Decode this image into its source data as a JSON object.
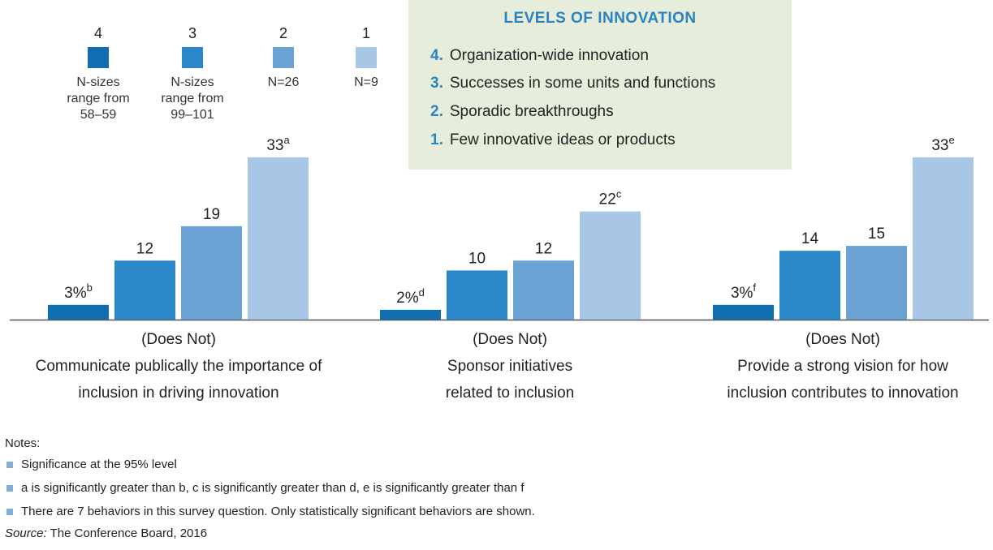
{
  "colors": {
    "level4": "#0f6fb0",
    "level3": "#2b88c8",
    "level2": "#6aa3d3",
    "level1": "#a8c6e6",
    "box_bg": "#e6eedb",
    "accent": "#2b83c3"
  },
  "legend": [
    {
      "level": "4",
      "n_text": "N-sizes\nrange from\n58–59"
    },
    {
      "level": "3",
      "n_text": "N-sizes\nrange from\n99–101"
    },
    {
      "level": "2",
      "n_text": "N=26"
    },
    {
      "level": "1",
      "n_text": "N=9"
    }
  ],
  "levels_box": {
    "title": "LEVELS OF INNOVATION",
    "items": [
      {
        "num": "4.",
        "text": "Organization-wide innovation"
      },
      {
        "num": "3.",
        "text": "Successes in some units and functions"
      },
      {
        "num": "2.",
        "text": "Sporadic breakthroughs"
      },
      {
        "num": "1.",
        "text": "Few innovative ideas or products"
      }
    ]
  },
  "chart_data": {
    "type": "bar",
    "ylim": [
      0,
      35
    ],
    "grid": false,
    "legend": "top-left",
    "series_levels": [
      "4",
      "3",
      "2",
      "1"
    ],
    "groups": [
      {
        "line1": "(Does Not)",
        "line2": "Communicate publically the importance of",
        "line3": "inclusion in driving innovation",
        "values": [
          3,
          12,
          19,
          33
        ],
        "labels": [
          "3%",
          "12",
          "19",
          "33"
        ],
        "sups": [
          "b",
          "",
          "",
          "a"
        ]
      },
      {
        "line1": "(Does Not)",
        "line2": "Sponsor initiatives",
        "line3": "related to inclusion",
        "values": [
          2,
          10,
          12,
          22
        ],
        "labels": [
          "2%",
          "10",
          "12",
          "22"
        ],
        "sups": [
          "d",
          "",
          "",
          "c"
        ]
      },
      {
        "line1": "(Does Not)",
        "line2": "Provide a strong vision for how",
        "line3": "inclusion contributes to innovation",
        "values": [
          3,
          14,
          15,
          33
        ],
        "labels": [
          "3%",
          "14",
          "15",
          "33"
        ],
        "sups": [
          "f",
          "",
          "",
          "e"
        ]
      }
    ]
  },
  "notes": {
    "title": "Notes:",
    "items": [
      "Significance at the 95% level",
      "a is significantly greater than b,  c is significantly greater than d, e is significantly greater than f",
      "There are 7 behaviors in this survey question. Only statistically significant behaviors are shown."
    ],
    "source_label": "Source:",
    "source_text": " The Conference Board, 2016"
  }
}
